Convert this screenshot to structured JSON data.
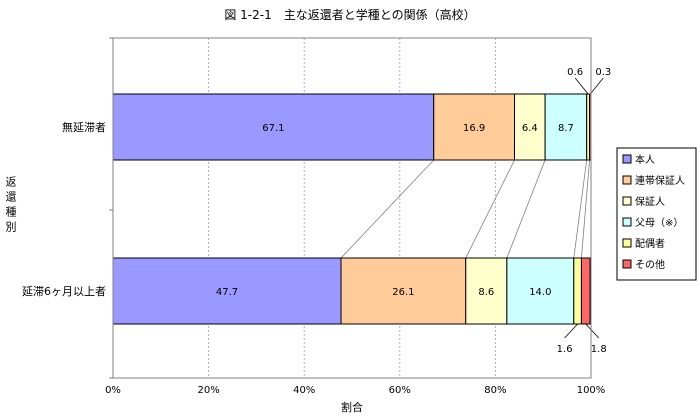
{
  "chart_data": {
    "type": "bar",
    "orientation": "horizontal",
    "stacked": "percent",
    "title": "図 1-2-1　主な返還者と学種との関係（高校）",
    "xlabel": "割合",
    "ylabel": "返還種別",
    "xlim": [
      0,
      100
    ],
    "x_ticks": [
      "0%",
      "20%",
      "40%",
      "60%",
      "80%",
      "100%"
    ],
    "grid": "vertical dotted",
    "legend_position": "right",
    "categories": [
      "無延滞者",
      "延滞6ヶ月以上者"
    ],
    "series": [
      {
        "name": "本人",
        "color": "#9999ff",
        "values": [
          67.1,
          47.7
        ],
        "labels": [
          "67.1",
          "47.7"
        ]
      },
      {
        "name": "連帯保証人",
        "color": "#ffcc99",
        "values": [
          16.9,
          26.1
        ],
        "labels": [
          "16.9",
          "26.1"
        ]
      },
      {
        "name": "保証人",
        "color": "#ffffcc",
        "values": [
          6.4,
          8.6
        ],
        "labels": [
          "6.4",
          "8.6"
        ]
      },
      {
        "name": "父母（※）",
        "color": "#ccffff",
        "values": [
          8.7,
          14.0
        ],
        "labels": [
          "8.7",
          "14.0"
        ]
      },
      {
        "name": "配偶者",
        "color": "#ffff99",
        "values": [
          0.6,
          1.6
        ],
        "labels": [
          "0.6",
          "1.6"
        ]
      },
      {
        "name": "その他",
        "color": "#ff6666",
        "values": [
          0.3,
          1.8
        ],
        "labels": [
          "0.3",
          "1.8"
        ]
      }
    ]
  }
}
